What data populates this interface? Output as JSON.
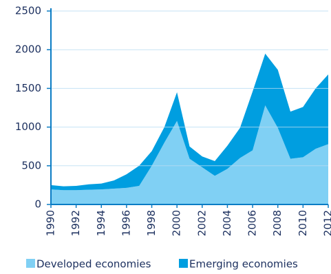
{
  "chart_data": {
    "type": "stacked-area",
    "x": [
      1990,
      1991,
      1992,
      1993,
      1994,
      1995,
      1996,
      1997,
      1998,
      1999,
      2000,
      2001,
      2002,
      2003,
      2004,
      2005,
      2006,
      2007,
      2008,
      2009,
      2010,
      2011,
      2012
    ],
    "series": [
      {
        "name": "Developed economies",
        "color": "#80d0f4",
        "values": [
          195,
          185,
          185,
          190,
          195,
          205,
          215,
          240,
          500,
          800,
          1080,
          590,
          480,
          370,
          460,
          600,
          700,
          1280,
          990,
          590,
          610,
          720,
          780
        ]
      },
      {
        "name": "Emerging economies",
        "color": "#009ee0",
        "values": [
          55,
          50,
          55,
          70,
          75,
          105,
          175,
          260,
          190,
          200,
          370,
          160,
          140,
          190,
          300,
          390,
          760,
          670,
          750,
          610,
          650,
          780,
          900
        ]
      }
    ],
    "xlim": [
      1990,
      2012
    ],
    "xticks": [
      1990,
      1992,
      1994,
      1996,
      1998,
      2000,
      2002,
      2004,
      2006,
      2008,
      2010,
      2012
    ],
    "ylim": [
      0,
      2500
    ],
    "yticks": [
      0,
      500,
      1000,
      1500,
      2000,
      2500
    ],
    "grid": true
  }
}
